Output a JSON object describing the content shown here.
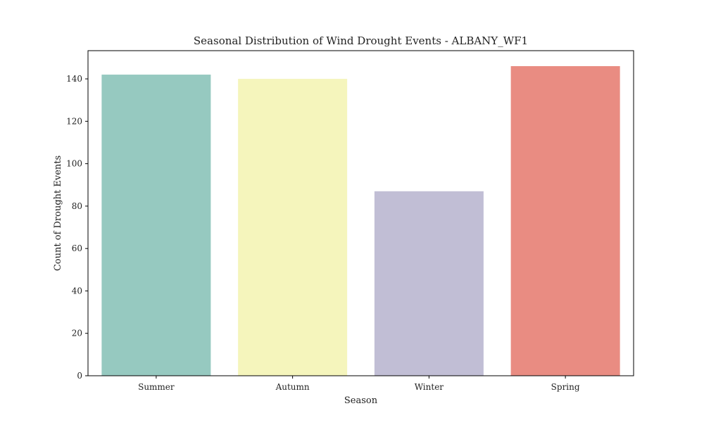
{
  "chart_data": {
    "type": "bar",
    "title": "Seasonal Distribution of Wind Drought Events - ALBANY_WF1",
    "xlabel": "Season",
    "ylabel": "Count of Drought Events",
    "categories": [
      "Summer",
      "Autumn",
      "Winter",
      "Spring"
    ],
    "values": [
      142,
      140,
      87,
      146
    ],
    "colors": [
      "#96c9c0",
      "#f5f5bc",
      "#c1bed5",
      "#e98c82"
    ],
    "ylim": [
      0,
      153.3
    ],
    "yticks": [
      0,
      20,
      40,
      60,
      80,
      100,
      120,
      140
    ],
    "grid": false,
    "legend": "none"
  }
}
